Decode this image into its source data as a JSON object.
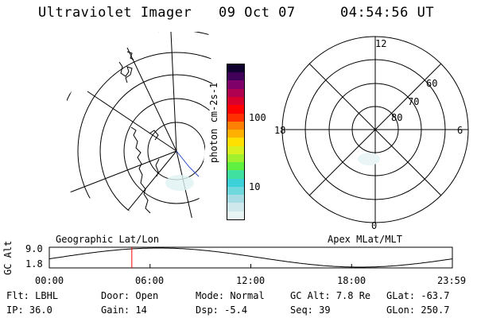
{
  "header": {
    "instrument": "Ultraviolet Imager",
    "date": "09 Oct 07",
    "time": "04:54:56 UT"
  },
  "colorbar": {
    "unit_label": "photon cm-2s-1",
    "ticks": [
      "100",
      "10"
    ],
    "colors": [
      "#e8f4f4",
      "#cfe8ec",
      "#a8dce4",
      "#6ed8dc",
      "#3cd0d8",
      "#40e0a0",
      "#60f040",
      "#a0f030",
      "#d8f020",
      "#ffe000",
      "#ffb000",
      "#ff8000",
      "#ff3000",
      "#ff0000",
      "#d8002a",
      "#b00050",
      "#80006a",
      "#40005a",
      "#100030"
    ]
  },
  "polar_plot": {
    "mlt_labels": [
      "12",
      "18",
      "6",
      "0"
    ],
    "lat_labels": [
      "60",
      "70",
      "80"
    ]
  },
  "altitude_panel": {
    "ylabel": "GC Alt",
    "ytick_top": "9.0",
    "ytick_bottom": "1.8",
    "left_title": "Geographic Lat/Lon",
    "right_title": "Apex MLat/MLT",
    "time_ticks": [
      "00:00",
      "06:00",
      "12:00",
      "18:00",
      "23:59"
    ],
    "current_time_hours": 4.915,
    "marker_color": "#ff0000"
  },
  "footer": {
    "row1": [
      {
        "label": "Flt:",
        "value": "LBHL"
      },
      {
        "label": "Door:",
        "value": "Open"
      },
      {
        "label": "Mode:",
        "value": "Normal"
      },
      {
        "label": "GC Alt:",
        "value": "7.8 Re"
      },
      {
        "label": "GLat:",
        "value": "-63.7"
      }
    ],
    "row2": [
      {
        "label": "IP:",
        "value": "36.0"
      },
      {
        "label": "Gain:",
        "value": "14"
      },
      {
        "label": "Dsp:",
        "value": "-5.4"
      },
      {
        "label": "Seq:",
        "value": "39"
      },
      {
        "label": "GLon:",
        "value": "250.7"
      }
    ]
  }
}
